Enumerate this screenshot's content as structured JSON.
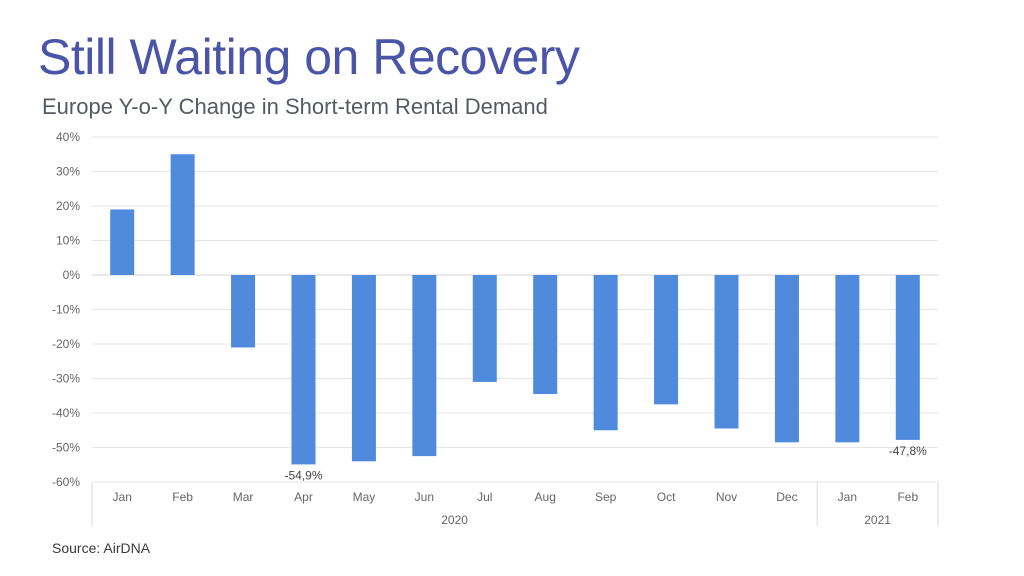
{
  "title": "Still Waiting on Recovery",
  "subtitle": "Europe Y-o-Y Change in Short-term Rental Demand",
  "source": "Source: AirDNA",
  "chart_data": {
    "type": "bar",
    "title": "Europe Y-o-Y Change in Short-term Rental Demand",
    "categories": [
      "Jan",
      "Feb",
      "Mar",
      "Apr",
      "May",
      "Jun",
      "Jul",
      "Aug",
      "Sep",
      "Oct",
      "Nov",
      "Dec",
      "Jan",
      "Feb"
    ],
    "groups": [
      {
        "label": "2020",
        "from": 0,
        "to": 11
      },
      {
        "label": "2021",
        "from": 12,
        "to": 13
      }
    ],
    "values": [
      19.0,
      35.0,
      -21.0,
      -54.9,
      -54.0,
      -52.5,
      -31.0,
      -34.5,
      -45.0,
      -37.5,
      -44.5,
      -48.5,
      -48.5,
      -47.8
    ],
    "data_labels": [
      {
        "index": 3,
        "text": "-54,9%"
      },
      {
        "index": 13,
        "text": "-47,8%"
      }
    ],
    "ylim": [
      -60,
      40
    ],
    "yticks": [
      40,
      30,
      20,
      10,
      0,
      -10,
      -20,
      -30,
      -40,
      -50,
      -60
    ],
    "ytick_labels": [
      "40%",
      "30%",
      "20%",
      "10%",
      "0%",
      "-10%",
      "-20%",
      "-30%",
      "-40%",
      "-50%",
      "-60%"
    ],
    "bar_color": "#4f8adc",
    "grid": true,
    "xlabel": "",
    "ylabel": ""
  }
}
